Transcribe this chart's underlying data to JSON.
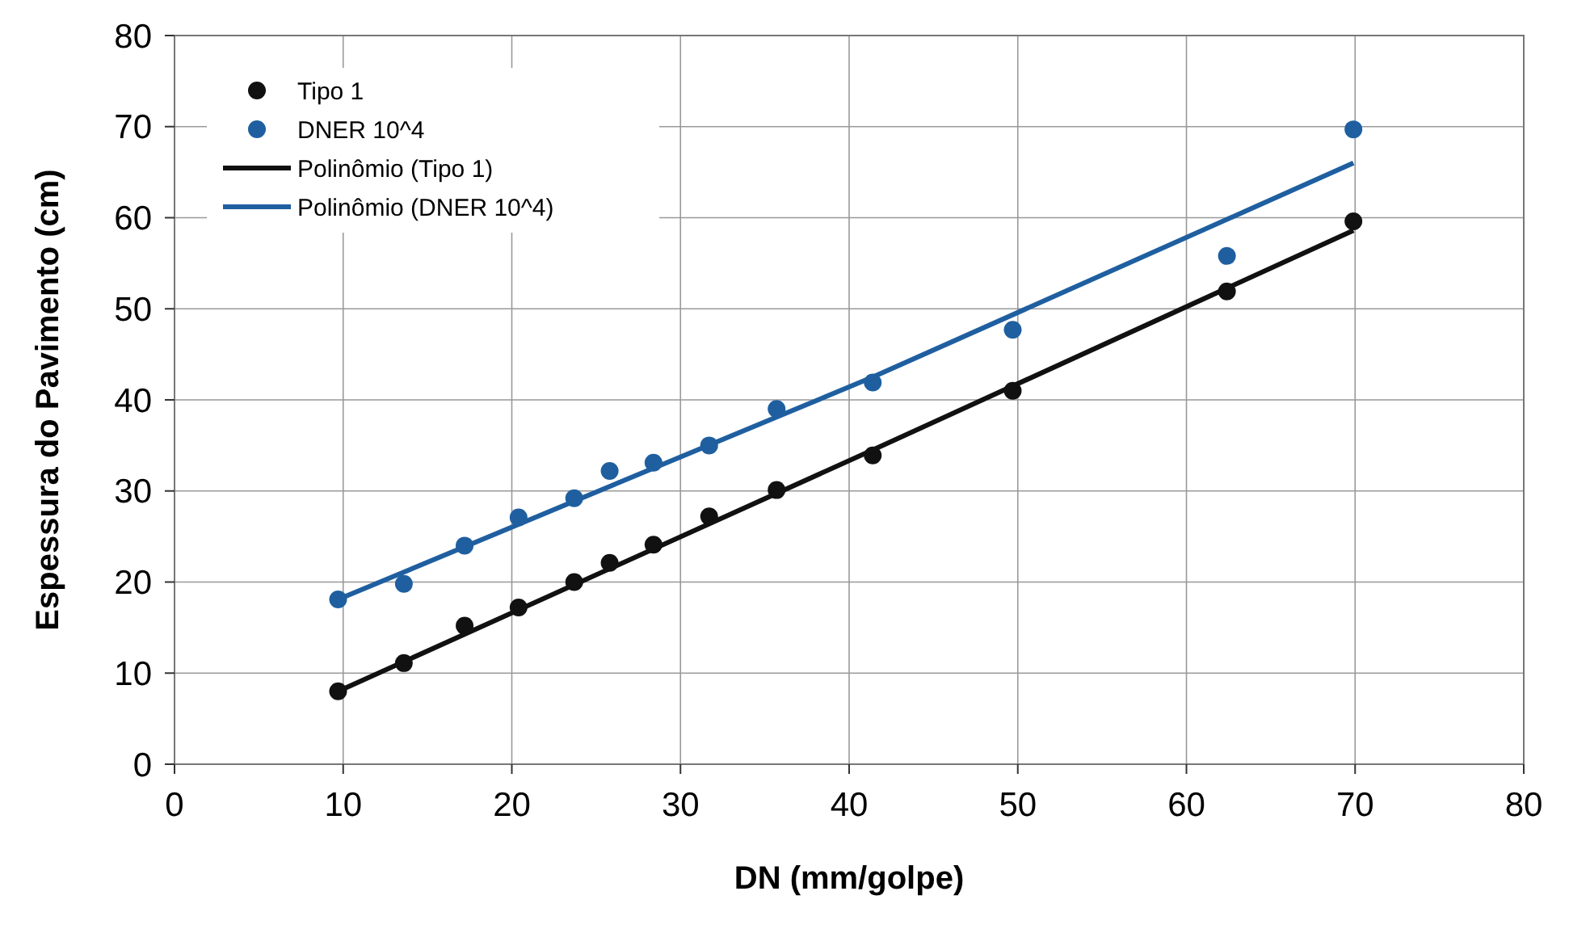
{
  "chart_data": {
    "type": "scatter",
    "xlabel": "DN (mm/golpe)",
    "ylabel": "Espessura do Pavimento (cm)",
    "xlim": [
      0,
      80
    ],
    "xticks": [
      0,
      10,
      20,
      30,
      40,
      50,
      60,
      70,
      80
    ],
    "ylim": [
      0,
      80
    ],
    "yticks": [
      0,
      10,
      20,
      30,
      40,
      50,
      60,
      70,
      80
    ],
    "grid": true,
    "legend": "top left",
    "series": [
      {
        "name": "Tipo 1",
        "marker": "circle",
        "color": "#111111",
        "x": [
          9.7,
          13.6,
          17.2,
          20.4,
          23.7,
          25.8,
          28.4,
          31.7,
          35.7,
          41.4,
          49.7,
          62.4,
          69.9
        ],
        "values": [
          8.0,
          11.1,
          15.2,
          17.2,
          20.0,
          22.1,
          24.1,
          27.2,
          30.1,
          33.9,
          41.0,
          51.9,
          59.6
        ]
      },
      {
        "name": "DNER 10^4",
        "marker": "circle",
        "color": "#1f5fa0",
        "x": [
          9.7,
          13.6,
          17.2,
          20.4,
          23.7,
          25.8,
          28.4,
          31.7,
          35.7,
          41.4,
          49.7,
          62.4,
          69.9
        ],
        "values": [
          18.1,
          19.8,
          24.0,
          27.1,
          29.2,
          32.2,
          33.1,
          35.0,
          39.0,
          41.9,
          47.7,
          55.8,
          69.7
        ]
      },
      {
        "name": "Polinômio (Tipo 1)",
        "type": "line",
        "marker": "none",
        "color": "#111111",
        "line_style": "solid",
        "x": [
          9.7,
          41.4,
          69.9
        ],
        "values": [
          8.0,
          34.5,
          58.6
        ]
      },
      {
        "name": "Polinômio (DNER 10^4)",
        "type": "line",
        "marker": "none",
        "color": "#1f5fa0",
        "line_style": "solid",
        "x": [
          9.7,
          41.4,
          69.9
        ],
        "values": [
          18.1,
          42.5,
          66.0
        ]
      }
    ]
  }
}
